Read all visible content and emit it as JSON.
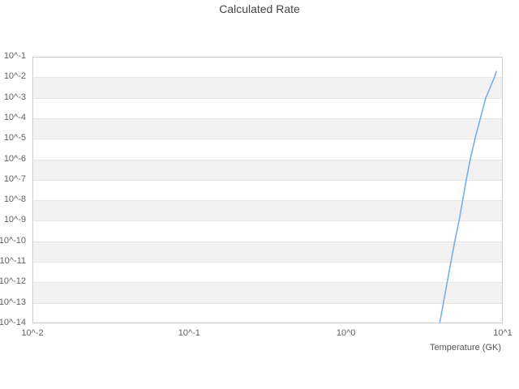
{
  "title": "Calculated Rate",
  "colors": {
    "background": "#ffffff",
    "title_text": "#454545",
    "axis_label_text": "#606060",
    "band": "#f2f2f2",
    "gridline": "#e6e6e6",
    "plot_border": "#cccccc",
    "series_line": "#74b0ea"
  },
  "chart_data": {
    "type": "line",
    "title": "Calculated Rate",
    "xlabel": "Temperature (GK)",
    "ylabel": "",
    "x_scale": "log",
    "y_scale": "log",
    "xlim": [
      0.01,
      10
    ],
    "ylim": [
      1e-14,
      0.1
    ],
    "grid": "horizontal gridlines only, alternating gray row bands",
    "legend": "none",
    "x_ticks": [
      {
        "label": "10^-2",
        "value": 0.01
      },
      {
        "label": "10^-1",
        "value": 0.1
      },
      {
        "label": "10^0",
        "value": 1
      },
      {
        "label": "10^1",
        "value": 10
      }
    ],
    "y_ticks": [
      {
        "label": "10^-1",
        "exp": -1
      },
      {
        "label": "10^-2",
        "exp": -2
      },
      {
        "label": "10^-3",
        "exp": -3
      },
      {
        "label": "10^-4",
        "exp": -4
      },
      {
        "label": "10^-5",
        "exp": -5
      },
      {
        "label": "10^-6",
        "exp": -6
      },
      {
        "label": "10^-7",
        "exp": -7
      },
      {
        "label": "10^-8",
        "exp": -8
      },
      {
        "label": "10^-9",
        "exp": -9
      },
      {
        "label": "10^-10",
        "exp": -10
      },
      {
        "label": "10^-11",
        "exp": -11
      },
      {
        "label": "10^-12",
        "exp": -12
      },
      {
        "label": "10^-13",
        "exp": -13
      },
      {
        "label": "10^-14",
        "exp": -14
      }
    ],
    "series": [
      {
        "name": "Calculated Rate",
        "color": "#74b0ea",
        "points": [
          [
            3.96,
            1e-14
          ],
          [
            4.18,
            1e-13
          ],
          [
            4.42,
            1e-12
          ],
          [
            4.67,
            1e-11
          ],
          [
            4.94,
            1e-10
          ],
          [
            5.26,
            1e-09
          ],
          [
            5.55,
            1e-08
          ],
          [
            5.85,
            1e-07
          ],
          [
            6.2,
            1e-06
          ],
          [
            6.65,
            1e-05
          ],
          [
            7.2,
            0.0001
          ],
          [
            7.8,
            0.001
          ],
          [
            8.85,
            0.01
          ],
          [
            9.1,
            0.019
          ]
        ]
      }
    ]
  }
}
